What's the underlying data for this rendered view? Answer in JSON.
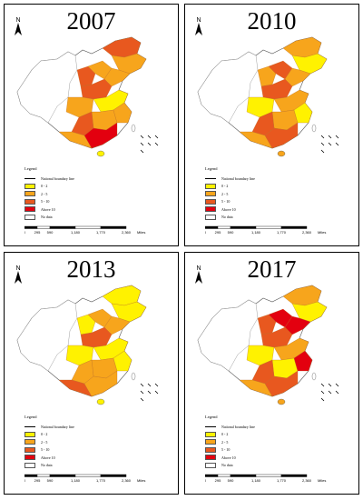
{
  "legend": {
    "title": "Legend",
    "boundary": "National boundary line",
    "classes": [
      {
        "label": "0 - 2",
        "color": "#fff200"
      },
      {
        "label": "2 - 5",
        "color": "#f7a51c"
      },
      {
        "label": "5 - 10",
        "color": "#e8581f"
      },
      {
        "label": "Above 10",
        "color": "#e3000f"
      },
      {
        "label": "No data",
        "color": "#ffffff"
      }
    ]
  },
  "scale": {
    "ticks": [
      "0",
      "295",
      "590",
      "1,180",
      "1,770",
      "2,360"
    ],
    "unit": "Miles"
  },
  "north_label": "N",
  "panels": [
    {
      "year": "2007"
    },
    {
      "year": "2010"
    },
    {
      "year": "2013"
    },
    {
      "year": "2017"
    }
  ]
}
